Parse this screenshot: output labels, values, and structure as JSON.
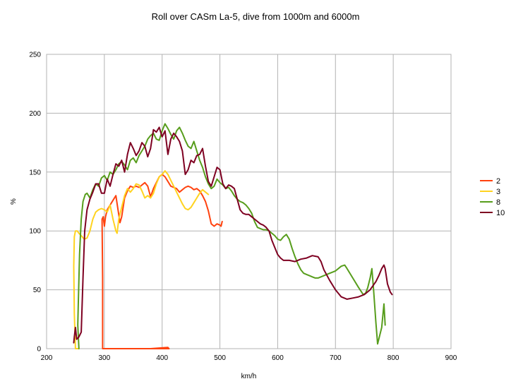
{
  "chart_data": {
    "type": "line",
    "title": "Roll over CASm La-5, dive from 1000m and 6000m",
    "xlabel": "km/h",
    "ylabel": "%",
    "xlim": [
      200,
      900
    ],
    "ylim": [
      0,
      250
    ],
    "x_ticks": [
      200,
      300,
      400,
      500,
      600,
      700,
      800,
      900
    ],
    "y_ticks": [
      0,
      50,
      100,
      150,
      200,
      250
    ],
    "grid": "horizontal and vertical major gridlines",
    "legend_position": "right",
    "series": [
      {
        "name": "2",
        "color": "#ff420e",
        "points": [
          [
            297,
            0
          ],
          [
            300,
            0
          ],
          [
            340,
            0
          ],
          [
            380,
            0
          ],
          [
            410,
            1
          ],
          [
            412,
            0
          ],
          [
            297,
            0
          ],
          [
            297,
            60
          ],
          [
            296,
            110
          ],
          [
            298,
            112
          ],
          [
            300,
            104
          ],
          [
            302,
            112
          ],
          [
            305,
            118
          ],
          [
            310,
            122
          ],
          [
            315,
            126
          ],
          [
            320,
            130
          ],
          [
            323,
            120
          ],
          [
            327,
            107
          ],
          [
            330,
            112
          ],
          [
            335,
            128
          ],
          [
            340,
            134
          ],
          [
            345,
            138
          ],
          [
            350,
            137
          ],
          [
            355,
            138
          ],
          [
            360,
            137
          ],
          [
            365,
            139
          ],
          [
            370,
            141
          ],
          [
            375,
            138
          ],
          [
            380,
            129
          ],
          [
            385,
            136
          ],
          [
            390,
            141
          ],
          [
            395,
            146
          ],
          [
            400,
            148
          ],
          [
            405,
            146
          ],
          [
            410,
            142
          ],
          [
            415,
            138
          ],
          [
            420,
            137
          ],
          [
            425,
            136
          ],
          [
            430,
            133
          ],
          [
            435,
            135
          ],
          [
            440,
            137
          ],
          [
            445,
            138
          ],
          [
            450,
            137
          ],
          [
            455,
            135
          ],
          [
            460,
            136
          ],
          [
            465,
            134
          ],
          [
            470,
            130
          ],
          [
            475,
            125
          ],
          [
            480,
            117
          ],
          [
            485,
            106
          ],
          [
            490,
            104
          ],
          [
            495,
            106
          ],
          [
            500,
            105
          ],
          [
            502,
            104
          ],
          [
            504,
            108
          ]
        ]
      },
      {
        "name": "3",
        "color": "#ffd320",
        "points": [
          [
            256,
            0
          ],
          [
            250,
            0
          ],
          [
            248,
            30
          ],
          [
            247,
            70
          ],
          [
            248,
            95
          ],
          [
            250,
            100
          ],
          [
            253,
            100
          ],
          [
            256,
            98
          ],
          [
            260,
            96
          ],
          [
            265,
            93
          ],
          [
            270,
            94
          ],
          [
            275,
            100
          ],
          [
            280,
            110
          ],
          [
            285,
            116
          ],
          [
            290,
            118
          ],
          [
            295,
            119
          ],
          [
            300,
            118
          ],
          [
            305,
            116
          ],
          [
            310,
            122
          ],
          [
            315,
            110
          ],
          [
            320,
            100
          ],
          [
            322,
            98
          ],
          [
            325,
            110
          ],
          [
            330,
            120
          ],
          [
            335,
            130
          ],
          [
            340,
            136
          ],
          [
            345,
            133
          ],
          [
            350,
            136
          ],
          [
            355,
            140
          ],
          [
            360,
            139
          ],
          [
            365,
            134
          ],
          [
            370,
            128
          ],
          [
            375,
            130
          ],
          [
            380,
            128
          ],
          [
            385,
            132
          ],
          [
            390,
            140
          ],
          [
            395,
            146
          ],
          [
            400,
            148
          ],
          [
            405,
            151
          ],
          [
            410,
            148
          ],
          [
            415,
            143
          ],
          [
            420,
            138
          ],
          [
            425,
            133
          ],
          [
            430,
            128
          ],
          [
            435,
            123
          ],
          [
            440,
            119
          ],
          [
            445,
            118
          ],
          [
            450,
            120
          ],
          [
            455,
            124
          ],
          [
            460,
            128
          ],
          [
            465,
            132
          ],
          [
            470,
            135
          ],
          [
            475,
            133
          ],
          [
            480,
            131
          ]
        ]
      },
      {
        "name": "8",
        "color": "#579d1c",
        "points": [
          [
            256,
            0
          ],
          [
            254,
            20
          ],
          [
            255,
            40
          ],
          [
            257,
            80
          ],
          [
            260,
            110
          ],
          [
            263,
            125
          ],
          [
            267,
            131
          ],
          [
            270,
            132
          ],
          [
            275,
            128
          ],
          [
            280,
            135
          ],
          [
            285,
            140
          ],
          [
            290,
            138
          ],
          [
            295,
            145
          ],
          [
            300,
            147
          ],
          [
            305,
            143
          ],
          [
            310,
            150
          ],
          [
            315,
            148
          ],
          [
            320,
            152
          ],
          [
            325,
            157
          ],
          [
            330,
            159
          ],
          [
            335,
            156
          ],
          [
            340,
            152
          ],
          [
            345,
            160
          ],
          [
            350,
            162
          ],
          [
            355,
            158
          ],
          [
            360,
            164
          ],
          [
            365,
            168
          ],
          [
            370,
            172
          ],
          [
            375,
            178
          ],
          [
            380,
            181
          ],
          [
            385,
            183
          ],
          [
            390,
            178
          ],
          [
            395,
            177
          ],
          [
            400,
            185
          ],
          [
            405,
            191
          ],
          [
            410,
            187
          ],
          [
            415,
            182
          ],
          [
            420,
            178
          ],
          [
            425,
            185
          ],
          [
            430,
            188
          ],
          [
            435,
            183
          ],
          [
            440,
            177
          ],
          [
            445,
            172
          ],
          [
            450,
            170
          ],
          [
            455,
            176
          ],
          [
            460,
            168
          ],
          [
            465,
            160
          ],
          [
            470,
            154
          ],
          [
            475,
            146
          ],
          [
            480,
            140
          ],
          [
            485,
            136
          ],
          [
            490,
            138
          ],
          [
            495,
            144
          ],
          [
            500,
            141
          ],
          [
            505,
            139
          ],
          [
            510,
            136
          ],
          [
            515,
            137
          ],
          [
            520,
            134
          ],
          [
            525,
            130
          ],
          [
            530,
            127
          ],
          [
            535,
            125
          ],
          [
            540,
            124
          ],
          [
            545,
            122
          ],
          [
            550,
            119
          ],
          [
            555,
            115
          ],
          [
            560,
            108
          ],
          [
            565,
            103
          ],
          [
            570,
            102
          ],
          [
            575,
            101
          ],
          [
            580,
            101
          ],
          [
            585,
            100
          ],
          [
            590,
            98
          ],
          [
            595,
            96
          ],
          [
            600,
            93
          ],
          [
            605,
            92
          ],
          [
            610,
            95
          ],
          [
            615,
            97
          ],
          [
            620,
            93
          ],
          [
            625,
            85
          ],
          [
            630,
            78
          ],
          [
            635,
            72
          ],
          [
            640,
            67
          ],
          [
            645,
            64
          ],
          [
            650,
            63
          ],
          [
            655,
            62
          ],
          [
            660,
            61
          ],
          [
            665,
            60
          ],
          [
            670,
            60
          ],
          [
            680,
            62
          ],
          [
            690,
            64
          ],
          [
            700,
            66
          ],
          [
            710,
            70
          ],
          [
            716,
            71
          ],
          [
            720,
            68
          ],
          [
            730,
            60
          ],
          [
            740,
            52
          ],
          [
            748,
            46
          ],
          [
            752,
            47
          ],
          [
            756,
            52
          ],
          [
            760,
            60
          ],
          [
            763,
            68
          ],
          [
            766,
            50
          ],
          [
            770,
            22
          ],
          [
            773,
            4
          ],
          [
            776,
            10
          ],
          [
            780,
            18
          ],
          [
            784,
            38
          ],
          [
            786,
            20
          ]
        ]
      },
      {
        "name": "10",
        "color": "#7e0021",
        "points": [
          [
            247,
            5
          ],
          [
            248,
            10
          ],
          [
            250,
            18
          ],
          [
            252,
            8
          ],
          [
            256,
            10
          ],
          [
            260,
            14
          ],
          [
            263,
            60
          ],
          [
            266,
            100
          ],
          [
            270,
            118
          ],
          [
            275,
            127
          ],
          [
            280,
            133
          ],
          [
            285,
            140
          ],
          [
            290,
            140
          ],
          [
            295,
            132
          ],
          [
            300,
            132
          ],
          [
            305,
            144
          ],
          [
            310,
            138
          ],
          [
            315,
            148
          ],
          [
            320,
            157
          ],
          [
            325,
            155
          ],
          [
            330,
            160
          ],
          [
            335,
            150
          ],
          [
            340,
            165
          ],
          [
            345,
            175
          ],
          [
            350,
            170
          ],
          [
            355,
            164
          ],
          [
            360,
            168
          ],
          [
            365,
            175
          ],
          [
            370,
            172
          ],
          [
            375,
            163
          ],
          [
            380,
            170
          ],
          [
            385,
            186
          ],
          [
            390,
            184
          ],
          [
            395,
            188
          ],
          [
            400,
            180
          ],
          [
            405,
            185
          ],
          [
            410,
            165
          ],
          [
            415,
            178
          ],
          [
            420,
            183
          ],
          [
            425,
            180
          ],
          [
            430,
            176
          ],
          [
            435,
            168
          ],
          [
            440,
            148
          ],
          [
            445,
            152
          ],
          [
            450,
            160
          ],
          [
            455,
            158
          ],
          [
            460,
            164
          ],
          [
            465,
            165
          ],
          [
            470,
            170
          ],
          [
            475,
            155
          ],
          [
            480,
            142
          ],
          [
            485,
            138
          ],
          [
            490,
            146
          ],
          [
            495,
            154
          ],
          [
            500,
            152
          ],
          [
            505,
            140
          ],
          [
            510,
            136
          ],
          [
            515,
            139
          ],
          [
            520,
            138
          ],
          [
            525,
            136
          ],
          [
            530,
            127
          ],
          [
            535,
            118
          ],
          [
            540,
            115
          ],
          [
            545,
            114
          ],
          [
            550,
            114
          ],
          [
            555,
            112
          ],
          [
            560,
            110
          ],
          [
            565,
            108
          ],
          [
            570,
            106
          ],
          [
            575,
            105
          ],
          [
            580,
            103
          ],
          [
            585,
            100
          ],
          [
            590,
            92
          ],
          [
            595,
            86
          ],
          [
            600,
            80
          ],
          [
            605,
            77
          ],
          [
            610,
            75
          ],
          [
            620,
            75
          ],
          [
            630,
            74
          ],
          [
            640,
            76
          ],
          [
            650,
            77
          ],
          [
            660,
            79
          ],
          [
            670,
            78
          ],
          [
            675,
            74
          ],
          [
            680,
            67
          ],
          [
            690,
            58
          ],
          [
            700,
            50
          ],
          [
            710,
            44
          ],
          [
            720,
            42
          ],
          [
            730,
            43
          ],
          [
            740,
            44
          ],
          [
            750,
            46
          ],
          [
            760,
            50
          ],
          [
            770,
            57
          ],
          [
            775,
            62
          ],
          [
            780,
            68
          ],
          [
            784,
            71
          ],
          [
            786,
            68
          ],
          [
            790,
            55
          ],
          [
            795,
            48
          ],
          [
            798,
            46
          ]
        ]
      }
    ]
  }
}
